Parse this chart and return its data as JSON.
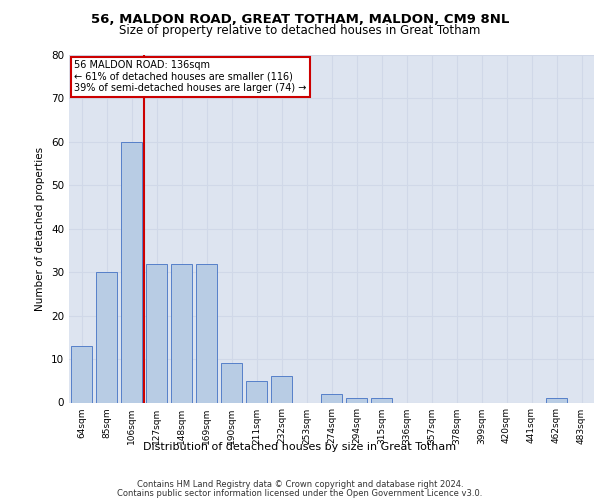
{
  "title": "56, MALDON ROAD, GREAT TOTHAM, MALDON, CM9 8NL",
  "subtitle": "Size of property relative to detached houses in Great Totham",
  "xlabel": "Distribution of detached houses by size in Great Totham",
  "ylabel": "Number of detached properties",
  "categories": [
    "64sqm",
    "85sqm",
    "106sqm",
    "127sqm",
    "148sqm",
    "169sqm",
    "190sqm",
    "211sqm",
    "232sqm",
    "253sqm",
    "274sqm",
    "294sqm",
    "315sqm",
    "336sqm",
    "357sqm",
    "378sqm",
    "399sqm",
    "420sqm",
    "441sqm",
    "462sqm",
    "483sqm"
  ],
  "values": [
    13,
    30,
    60,
    32,
    32,
    32,
    9,
    5,
    6,
    0,
    2,
    1,
    1,
    0,
    0,
    0,
    0,
    0,
    0,
    1,
    0
  ],
  "bar_color": "#b8cce4",
  "bar_edge_color": "#4472c4",
  "grid_color": "#d0d8e8",
  "background_color": "#dde4f0",
  "vline_color": "#cc0000",
  "annotation_text": "56 MALDON ROAD: 136sqm\n← 61% of detached houses are smaller (116)\n39% of semi-detached houses are larger (74) →",
  "annotation_box_color": "#cc0000",
  "ylim": [
    0,
    80
  ],
  "yticks": [
    0,
    10,
    20,
    30,
    40,
    50,
    60,
    70,
    80
  ],
  "footer_line1": "Contains HM Land Registry data © Crown copyright and database right 2024.",
  "footer_line2": "Contains public sector information licensed under the Open Government Licence v3.0."
}
